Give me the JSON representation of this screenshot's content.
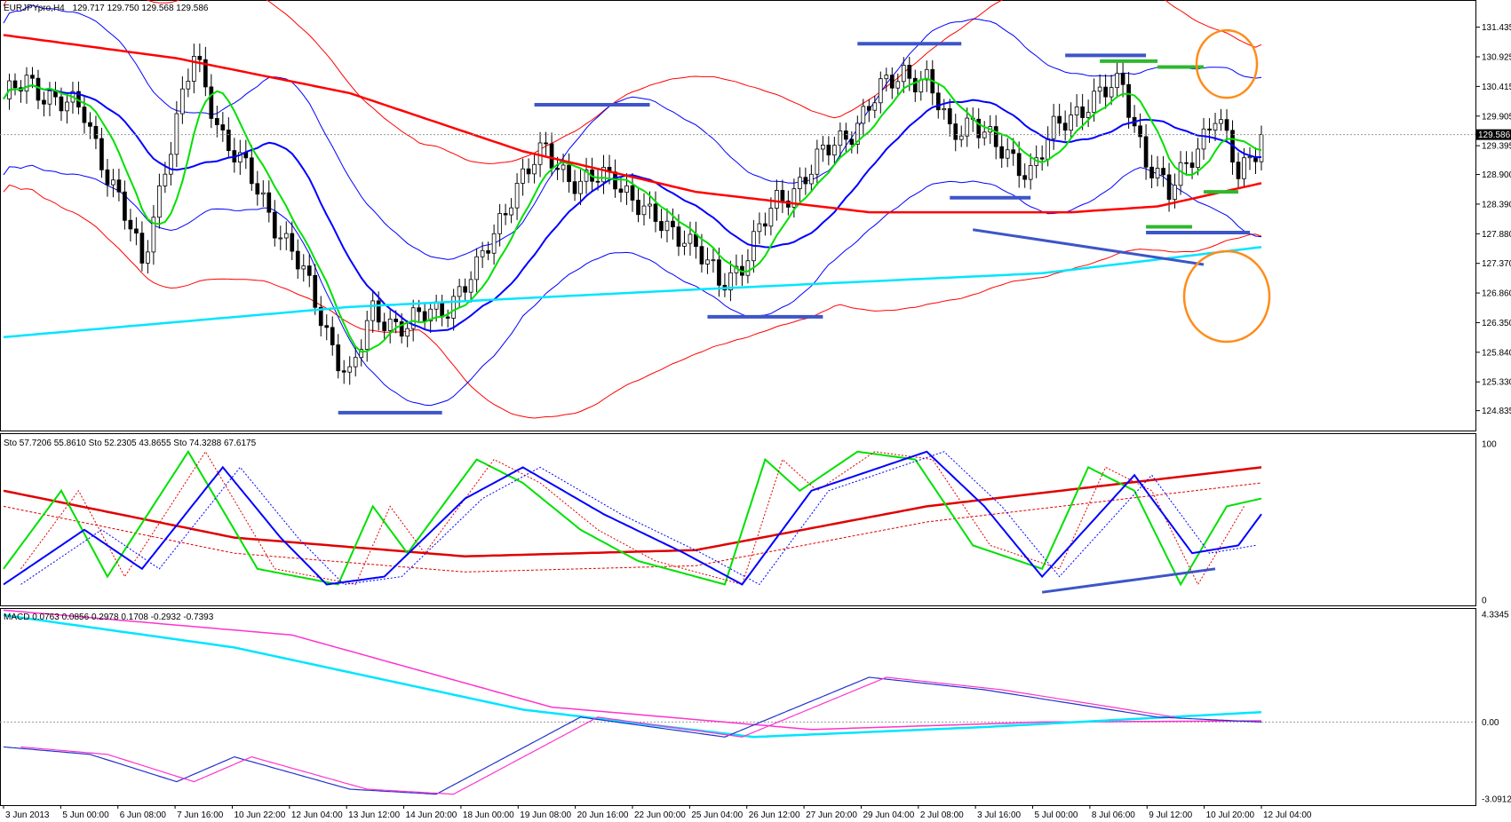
{
  "window": {
    "title": "EURJPYpro,H4",
    "ohlc": "129.717 129.750 129.568 129.586"
  },
  "colors": {
    "price_box": "#000000",
    "bull": "#ffffff",
    "bear": "#000000",
    "bb_outer": "#ff0000",
    "bb_inner": "#0000ff",
    "ma_fast": "#00e000",
    "ma_mid": "#0000ff",
    "ma_slow": "#ff0000",
    "ma_long": "#00e5ff",
    "annot_blue": "#3d55c8",
    "annot_green": "#2eb82e",
    "circle": "#ff8c1a"
  },
  "price_panel": {
    "ticks": [
      "131.435",
      "130.925",
      "130.415",
      "129.905",
      "129.395",
      "128.900",
      "128.390",
      "127.880",
      "127.370",
      "126.860",
      "126.350",
      "125.840",
      "125.330",
      "124.835"
    ],
    "current_price": "129.586"
  },
  "stoch_panel": {
    "header": "Sto 57.7206 55.8610  Sto 52.2305 43.8655  Sto 74.3288 67.6175",
    "ticks": [
      "100",
      "0"
    ]
  },
  "macd_panel": {
    "header": "MACD 0.0763 0.0856 0.2978 0.1708 -0.2932 -0.7393",
    "ticks": [
      "4.3345",
      "0.00",
      "-3.0912"
    ]
  },
  "x_axis": {
    "labels": [
      "3 Jun 2013",
      "5 Jun 00:00",
      "6 Jun 08:00",
      "7 Jun 16:00",
      "10 Jun 22:00",
      "12 Jun 04:00",
      "13 Jun 12:00",
      "14 Jun 20:00",
      "18 Jun 00:00",
      "19 Jun 08:00",
      "20 Jun 16:00",
      "22 Jun 00:00",
      "25 Jun 04:00",
      "26 Jun 12:00",
      "27 Jun 20:00",
      "29 Jun 04:00",
      "2 Jul 08:00",
      "3 Jul 16:00",
      "5 Jul 00:00",
      "8 Jul 06:00",
      "9 Jul 12:00",
      "10 Jul 20:00",
      "12 Jul 04:00"
    ]
  },
  "chart_data": {
    "type": "candlestick",
    "symbol": "EURJPYpro",
    "timeframe": "H4",
    "x_range": [
      "3 Jun 2013",
      "12 Jul 04:00"
    ],
    "price_ylim": [
      124.6,
      131.75
    ],
    "close_path": [
      {
        "t": 0,
        "close": 130.2
      },
      {
        "t": 4,
        "close": 130.45
      },
      {
        "t": 8,
        "close": 130.3
      },
      {
        "t": 14,
        "close": 129.9
      },
      {
        "t": 20,
        "close": 128.5
      },
      {
        "t": 24,
        "close": 127.3
      },
      {
        "t": 28,
        "close": 129.1
      },
      {
        "t": 33,
        "close": 130.9
      },
      {
        "t": 38,
        "close": 129.6
      },
      {
        "t": 44,
        "close": 128.6
      },
      {
        "t": 50,
        "close": 127.6
      },
      {
        "t": 56,
        "close": 126.2
      },
      {
        "t": 60,
        "close": 125.4
      },
      {
        "t": 64,
        "close": 126.5
      },
      {
        "t": 70,
        "close": 126.3
      },
      {
        "t": 76,
        "close": 126.6
      },
      {
        "t": 82,
        "close": 127.2
      },
      {
        "t": 88,
        "close": 128.6
      },
      {
        "t": 94,
        "close": 129.3
      },
      {
        "t": 100,
        "close": 128.7
      },
      {
        "t": 106,
        "close": 128.9
      },
      {
        "t": 112,
        "close": 128.1
      },
      {
        "t": 118,
        "close": 127.9
      },
      {
        "t": 124,
        "close": 127.0
      },
      {
        "t": 128,
        "close": 127.4
      },
      {
        "t": 134,
        "close": 128.4
      },
      {
        "t": 140,
        "close": 129.0
      },
      {
        "t": 146,
        "close": 129.6
      },
      {
        "t": 152,
        "close": 130.3
      },
      {
        "t": 156,
        "close": 130.7
      },
      {
        "t": 160,
        "close": 130.5
      },
      {
        "t": 164,
        "close": 129.6
      },
      {
        "t": 168,
        "close": 129.9
      },
      {
        "t": 172,
        "close": 129.3
      },
      {
        "t": 178,
        "close": 129.0
      },
      {
        "t": 182,
        "close": 129.6
      },
      {
        "t": 188,
        "close": 130.2
      },
      {
        "t": 194,
        "close": 130.4
      },
      {
        "t": 198,
        "close": 129.2
      },
      {
        "t": 202,
        "close": 128.5
      },
      {
        "t": 206,
        "close": 129.3
      },
      {
        "t": 210,
        "close": 129.9
      },
      {
        "t": 214,
        "close": 128.9
      },
      {
        "t": 218,
        "close": 129.586
      }
    ],
    "moving_averages": [
      {
        "name": "ma_slow",
        "points": [
          [
            0,
            131.3
          ],
          [
            30,
            130.9
          ],
          [
            60,
            130.3
          ],
          [
            90,
            129.3
          ],
          [
            120,
            128.6
          ],
          [
            150,
            128.25
          ],
          [
            185,
            128.25
          ],
          [
            200,
            128.35
          ],
          [
            218,
            128.75
          ]
        ]
      },
      {
        "name": "ma_long",
        "points": [
          [
            0,
            126.1
          ],
          [
            60,
            126.62
          ],
          [
            120,
            126.92
          ],
          [
            180,
            127.2
          ],
          [
            218,
            127.65
          ]
        ]
      }
    ],
    "stochastic": {
      "ylim": [
        0,
        100
      ],
      "fast": [
        [
          0,
          20
        ],
        [
          10,
          70
        ],
        [
          18,
          15
        ],
        [
          32,
          95
        ],
        [
          44,
          20
        ],
        [
          58,
          10
        ],
        [
          64,
          60
        ],
        [
          70,
          30
        ],
        [
          82,
          90
        ],
        [
          90,
          75
        ],
        [
          100,
          45
        ],
        [
          110,
          25
        ],
        [
          125,
          10
        ],
        [
          132,
          90
        ],
        [
          138,
          70
        ],
        [
          148,
          95
        ],
        [
          158,
          90
        ],
        [
          168,
          35
        ],
        [
          180,
          20
        ],
        [
          188,
          85
        ],
        [
          196,
          70
        ],
        [
          204,
          10
        ],
        [
          212,
          60
        ],
        [
          218,
          65
        ]
      ],
      "blue": [
        [
          0,
          10
        ],
        [
          14,
          45
        ],
        [
          24,
          20
        ],
        [
          38,
          85
        ],
        [
          48,
          40
        ],
        [
          56,
          10
        ],
        [
          66,
          15
        ],
        [
          80,
          65
        ],
        [
          90,
          85
        ],
        [
          104,
          55
        ],
        [
          118,
          30
        ],
        [
          128,
          10
        ],
        [
          140,
          70
        ],
        [
          160,
          95
        ],
        [
          170,
          60
        ],
        [
          180,
          15
        ],
        [
          196,
          80
        ],
        [
          206,
          30
        ],
        [
          214,
          35
        ],
        [
          218,
          55
        ]
      ],
      "red_slow": [
        [
          0,
          70
        ],
        [
          40,
          40
        ],
        [
          80,
          28
        ],
        [
          120,
          32
        ],
        [
          160,
          60
        ],
        [
          218,
          85
        ]
      ]
    },
    "macd": {
      "ylim": [
        -3.0912,
        4.3345
      ],
      "signal_long": [
        [
          0,
          4.3
        ],
        [
          40,
          3.0
        ],
        [
          90,
          0.5
        ],
        [
          130,
          -0.6
        ],
        [
          170,
          -0.2
        ],
        [
          218,
          0.4
        ]
      ],
      "signal_long2": [
        [
          0,
          4.5
        ],
        [
          50,
          3.5
        ],
        [
          95,
          0.6
        ],
        [
          140,
          -0.3
        ],
        [
          180,
          0.0
        ],
        [
          218,
          0.05
        ]
      ],
      "macd_osc": [
        [
          0,
          -1.0
        ],
        [
          15,
          -1.3
        ],
        [
          30,
          -2.4
        ],
        [
          40,
          -1.4
        ],
        [
          60,
          -2.7
        ],
        [
          75,
          -2.9
        ],
        [
          100,
          0.2
        ],
        [
          125,
          -0.6
        ],
        [
          150,
          1.8
        ],
        [
          170,
          1.3
        ],
        [
          200,
          0.2
        ],
        [
          218,
          0.0
        ]
      ]
    }
  }
}
